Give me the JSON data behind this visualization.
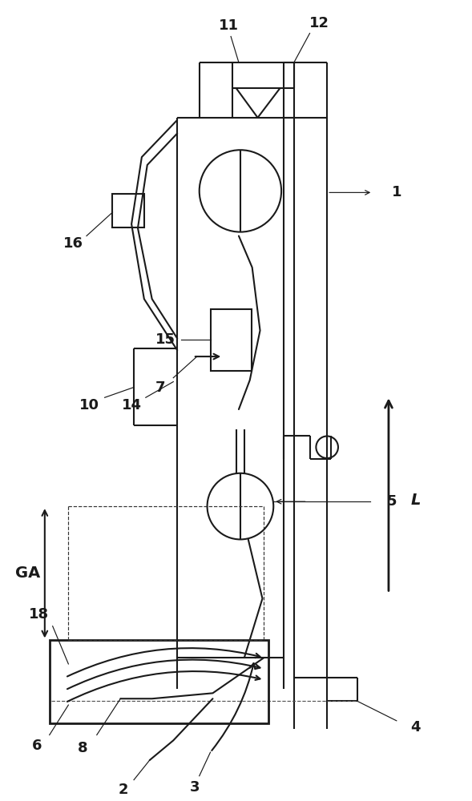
{
  "bg": "#ffffff",
  "lc": "#1a1a1a",
  "lw": 1.5,
  "lw_thin": 0.85,
  "lw_thick": 2.0,
  "fig_w": 5.89,
  "fig_h": 10.0
}
